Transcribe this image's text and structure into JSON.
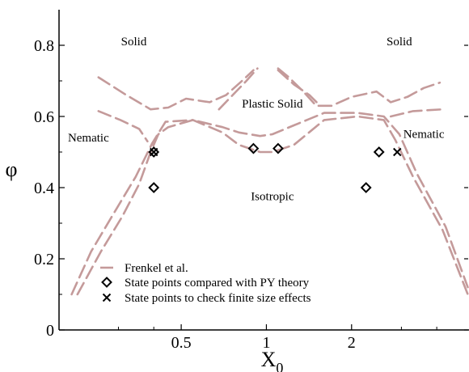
{
  "chart_data": {
    "type": "scatter",
    "title": "",
    "xlabel": "X",
    "xlabel_sub": "0",
    "ylabel": "φ",
    "x_scale": "log",
    "xlim": [
      0.185,
      5.2
    ],
    "ylim": [
      0,
      0.9
    ],
    "x_ticks": [
      {
        "value": 0.5,
        "label": "0.5"
      },
      {
        "value": 1,
        "label": "1"
      },
      {
        "value": 2,
        "label": "2"
      }
    ],
    "y_ticks": [
      {
        "value": 0,
        "label": "0"
      },
      {
        "value": 0.2,
        "label": "0.2"
      },
      {
        "value": 0.4,
        "label": "0.4"
      },
      {
        "value": 0.6,
        "label": "0.6"
      },
      {
        "value": 0.8,
        "label": "0.8"
      }
    ],
    "grid": false,
    "legend_position": "bottom-left",
    "line_color": "#c49a9a",
    "marker_color": "#000000",
    "series": [
      {
        "name": "Frenkel  et al.",
        "style": "dashed-line",
        "lines": [
          [
            [
              0.205,
              0.1
            ],
            [
              0.24,
              0.22
            ],
            [
              0.29,
              0.33
            ],
            [
              0.345,
              0.43
            ],
            [
              0.395,
              0.525
            ],
            [
              0.44,
              0.585
            ],
            [
              0.55,
              0.59
            ],
            [
              0.7,
              0.555
            ],
            [
              0.8,
              0.52
            ],
            [
              0.95,
              0.5
            ],
            [
              1.05,
              0.5
            ],
            [
              1.25,
              0.52
            ],
            [
              1.6,
              0.59
            ],
            [
              2.1,
              0.6
            ],
            [
              2.6,
              0.59
            ],
            [
              2.85,
              0.535
            ],
            [
              3.3,
              0.43
            ],
            [
              4.2,
              0.28
            ],
            [
              5.15,
              0.1
            ]
          ],
          [
            [
              0.215,
              0.1
            ],
            [
              0.26,
              0.22
            ],
            [
              0.31,
              0.32
            ],
            [
              0.355,
              0.41
            ],
            [
              0.39,
              0.5
            ],
            [
              0.415,
              0.55
            ],
            [
              0.45,
              0.57
            ],
            [
              0.55,
              0.59
            ],
            [
              0.7,
              0.57
            ],
            [
              0.8,
              0.555
            ],
            [
              0.95,
              0.545
            ],
            [
              1.05,
              0.55
            ],
            [
              1.25,
              0.575
            ],
            [
              1.6,
              0.61
            ],
            [
              2.1,
              0.61
            ],
            [
              2.6,
              0.6
            ],
            [
              2.95,
              0.55
            ],
            [
              3.4,
              0.44
            ],
            [
              4.3,
              0.29
            ],
            [
              5.15,
              0.12
            ]
          ],
          [
            [
              0.255,
              0.615
            ],
            [
              0.305,
              0.59
            ],
            [
              0.355,
              0.565
            ],
            [
              0.38,
              0.53
            ]
          ],
          [
            [
              0.255,
              0.71
            ],
            [
              0.32,
              0.66
            ],
            [
              0.39,
              0.62
            ],
            [
              0.45,
              0.625
            ],
            [
              0.52,
              0.65
            ],
            [
              0.63,
              0.64
            ],
            [
              0.72,
              0.66
            ],
            [
              0.82,
              0.7
            ],
            [
              0.9,
              0.73
            ]
          ],
          [
            [
              0.68,
              0.62
            ],
            [
              0.76,
              0.66
            ],
            [
              0.85,
              0.7
            ],
            [
              0.93,
              0.735
            ]
          ],
          [
            [
              1.1,
              0.735
            ],
            [
              1.2,
              0.71
            ],
            [
              1.35,
              0.67
            ],
            [
              1.5,
              0.63
            ],
            [
              1.7,
              0.63
            ],
            [
              2.0,
              0.655
            ],
            [
              2.45,
              0.67
            ],
            [
              2.75,
              0.64
            ],
            [
              3.15,
              0.655
            ],
            [
              3.6,
              0.68
            ],
            [
              4.1,
              0.695
            ]
          ],
          [
            [
              1.1,
              0.73
            ],
            [
              1.25,
              0.69
            ],
            [
              1.42,
              0.66
            ],
            [
              1.55,
              0.63
            ]
          ],
          [
            [
              2.75,
              0.6
            ],
            [
              3.3,
              0.615
            ],
            [
              4.2,
              0.62
            ]
          ]
        ]
      },
      {
        "name": "State points compared with PY theory",
        "style": "diamond-marker",
        "points": [
          [
            0.4,
            0.5
          ],
          [
            0.4,
            0.4
          ],
          [
            0.9,
            0.51
          ],
          [
            1.1,
            0.51
          ],
          [
            2.25,
            0.4
          ],
          [
            2.5,
            0.5
          ]
        ]
      },
      {
        "name": "State points to check finite size effects",
        "style": "x-marker",
        "points": [
          [
            0.4,
            0.5
          ],
          [
            2.9,
            0.5
          ]
        ]
      }
    ],
    "annotations": [
      {
        "text": "Solid",
        "x": 0.34,
        "y": 0.8
      },
      {
        "text": "Solid",
        "x": 2.95,
        "y": 0.8
      },
      {
        "text": "Plastic Solid",
        "x": 1.05,
        "y": 0.625
      },
      {
        "text": "Nematic",
        "x": 0.235,
        "y": 0.53
      },
      {
        "text": "Nematic",
        "x": 3.6,
        "y": 0.54
      },
      {
        "text": "Isotropic",
        "x": 1.05,
        "y": 0.365
      }
    ]
  }
}
